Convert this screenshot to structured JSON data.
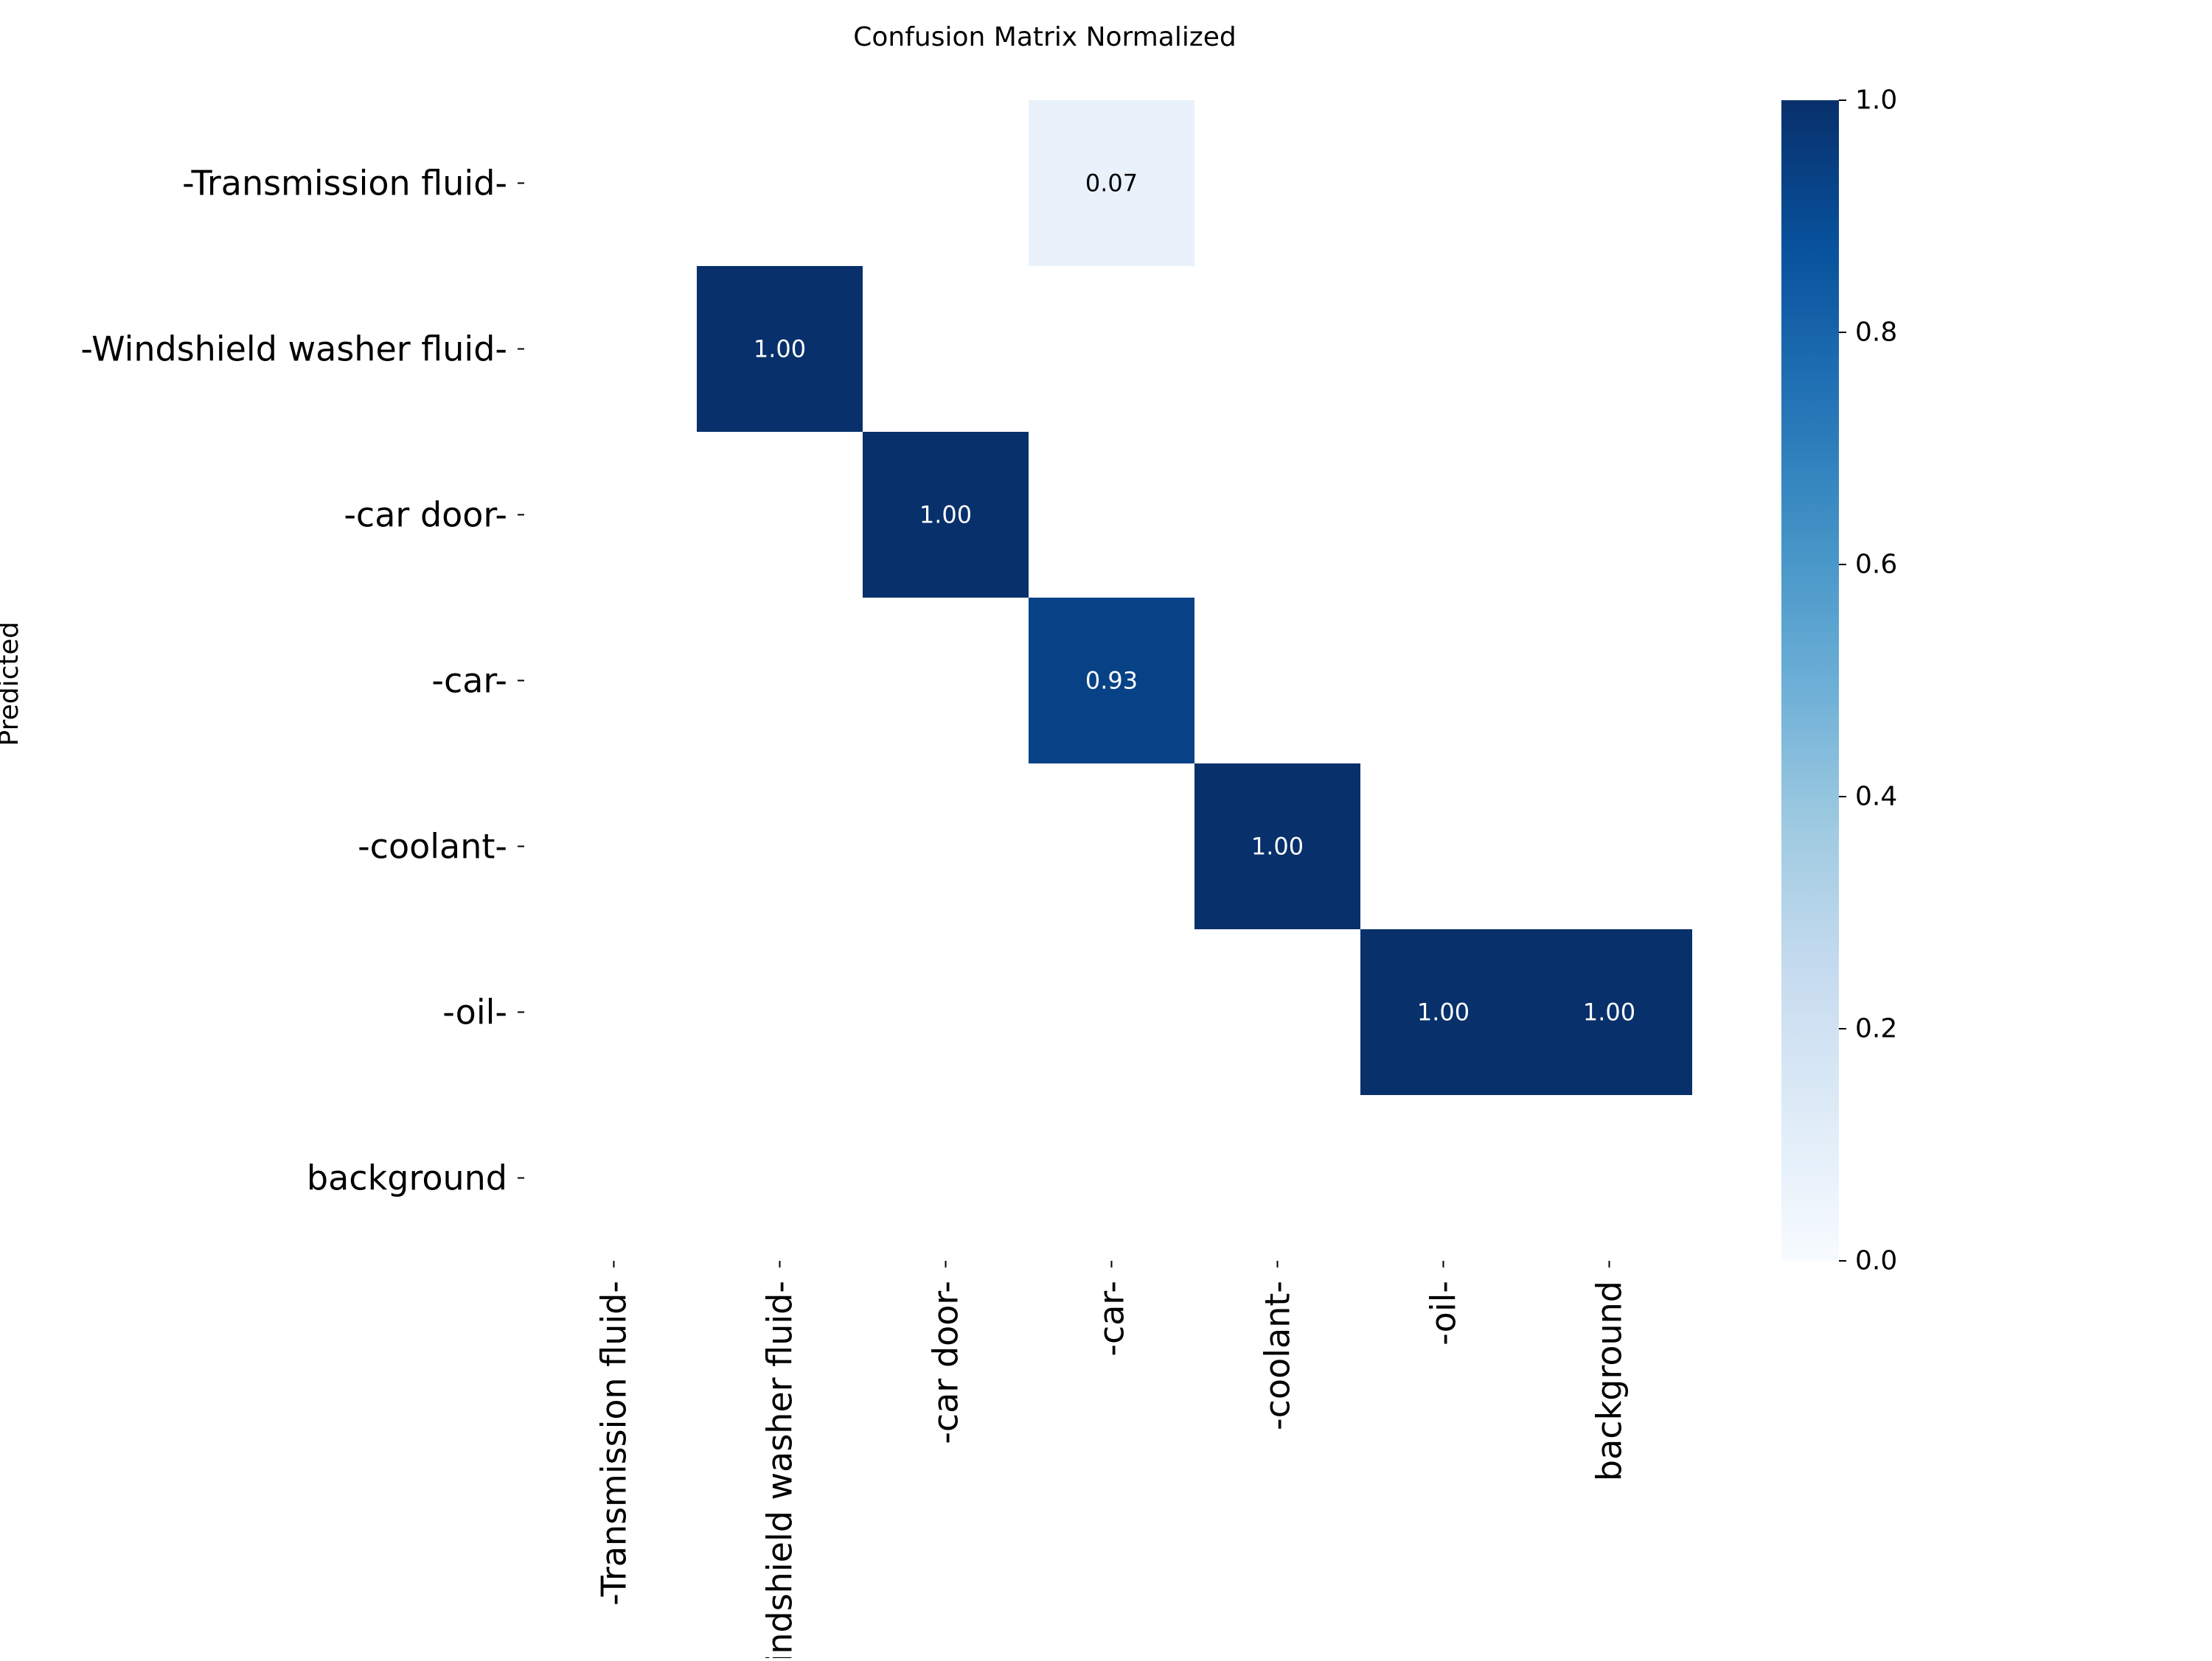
{
  "chart_data": {
    "type": "heatmap",
    "title": "Confusion Matrix Normalized",
    "ylabel": "Predicted",
    "xlabel": "",
    "row_labels": [
      "-Transmission fluid-",
      "-Windshield washer fluid-",
      "-car door-",
      "-car-",
      "-coolant-",
      "-oil-",
      "background"
    ],
    "col_labels": [
      "-Transmission fluid-",
      "-Windshield washer fluid-",
      "-car door-",
      "-car-",
      "-coolant-",
      "-oil-",
      "background"
    ],
    "values": [
      [
        null,
        null,
        null,
        0.07,
        null,
        null,
        null
      ],
      [
        null,
        1.0,
        null,
        null,
        null,
        null,
        null
      ],
      [
        null,
        null,
        1.0,
        null,
        null,
        null,
        null
      ],
      [
        null,
        null,
        null,
        0.93,
        null,
        null,
        null
      ],
      [
        null,
        null,
        null,
        null,
        1.0,
        null,
        null
      ],
      [
        null,
        null,
        null,
        null,
        null,
        1.0,
        1.0
      ],
      [
        null,
        null,
        null,
        null,
        null,
        null,
        null
      ]
    ],
    "value_format": "0.00",
    "colormap": "Blues",
    "vmin": 0.0,
    "vmax": 1.0,
    "colorbar_ticks": [
      0.0,
      0.2,
      0.4,
      0.6,
      0.8,
      1.0
    ],
    "colorbar_tick_labels": [
      "0.0",
      "0.2",
      "0.4",
      "0.6",
      "0.8",
      "1.0"
    ],
    "colorbar_colors": [
      "#f7fbff",
      "#deebf7",
      "#c6dbef",
      "#9ecae1",
      "#6baed6",
      "#4292c6",
      "#2171b5",
      "#08519c",
      "#08306b"
    ],
    "annotation_color_dark_bg": "#ffffff",
    "annotation_color_light_bg": "#000000",
    "grid": false
  }
}
